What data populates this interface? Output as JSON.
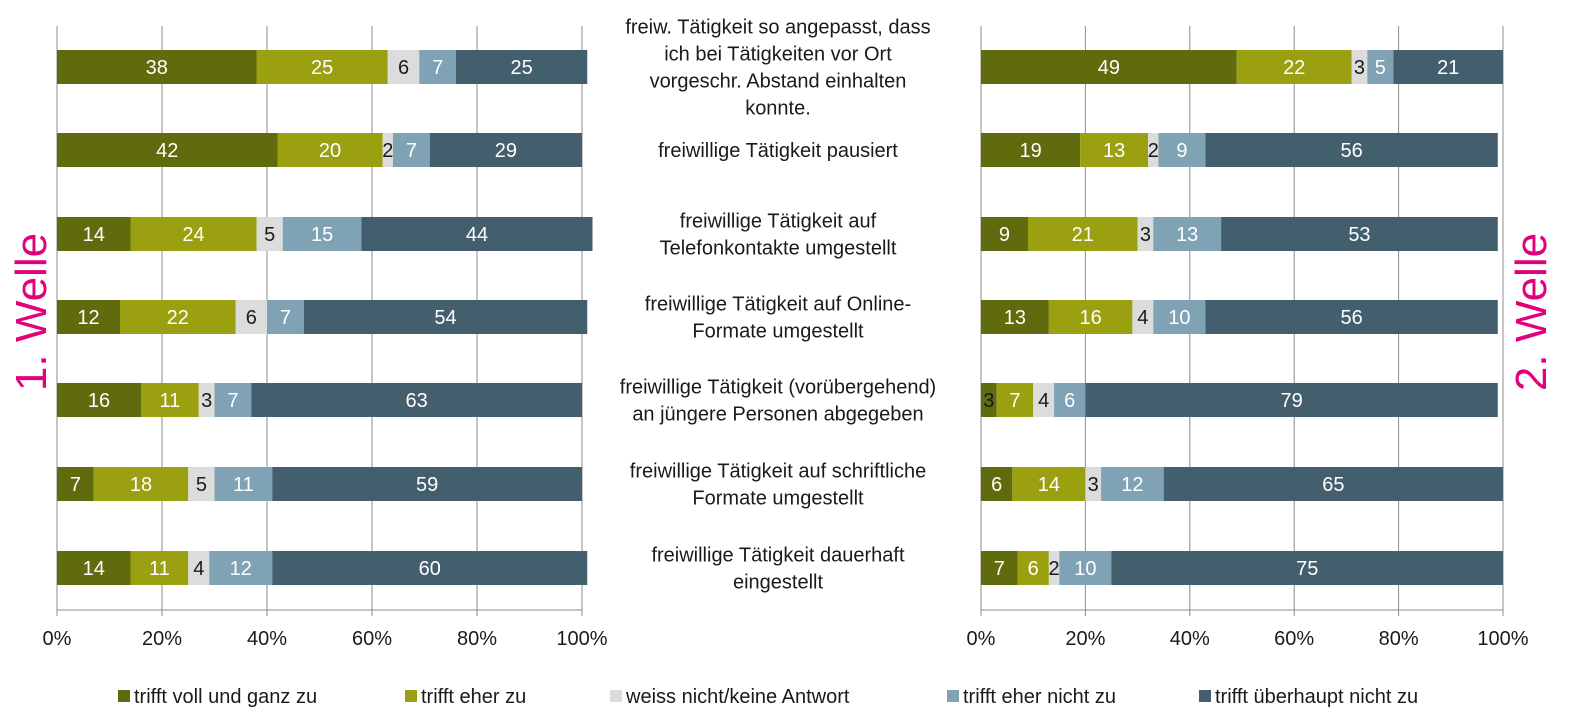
{
  "chart_data": [
    {
      "type": "bar",
      "orientation": "horizontal-stacked-100",
      "title": "1. Welle",
      "xlim": [
        0,
        100
      ],
      "xticks": [
        "0%",
        "20%",
        "40%",
        "60%",
        "80%",
        "100%"
      ],
      "categories": [
        "freiw. Tätigkeit so angepasst, dass ich bei Tätigkeiten vor Ort vorgeschr. Abstand einhalten konnte.",
        "freiwillige Tätigkeit pausiert",
        "freiwillige Tätigkeit auf Telefonkontakte umgestellt",
        "freiwillige Tätigkeit auf Online-Formate umgestellt",
        "freiwillige Tätigkeit (vorübergehend) an jüngere Personen abgegeben",
        "freiwillige Tätigkeit auf  schriftliche Formate umgestellt",
        "freiwillige Tätigkeit dauerhaft eingestellt"
      ],
      "series": [
        {
          "name": "trifft voll und ganz zu",
          "values": [
            38,
            42,
            14,
            12,
            16,
            7,
            14
          ]
        },
        {
          "name": "trifft eher zu",
          "values": [
            25,
            20,
            24,
            22,
            11,
            18,
            11
          ]
        },
        {
          "name": "weiss nicht/keine Antwort",
          "values": [
            6,
            2,
            5,
            6,
            3,
            5,
            4
          ]
        },
        {
          "name": "trifft eher nicht zu",
          "values": [
            7,
            7,
            15,
            7,
            7,
            11,
            12
          ]
        },
        {
          "name": "trifft überhaupt nicht zu",
          "values": [
            25,
            29,
            44,
            54,
            63,
            59,
            60
          ]
        }
      ]
    },
    {
      "type": "bar",
      "orientation": "horizontal-stacked-100",
      "title": "2. Welle",
      "xlim": [
        0,
        100
      ],
      "xticks": [
        "0%",
        "20%",
        "40%",
        "60%",
        "80%",
        "100%"
      ],
      "series": [
        {
          "name": "trifft voll und ganz zu",
          "values": [
            49,
            19,
            9,
            13,
            3,
            6,
            7
          ]
        },
        {
          "name": "trifft eher zu",
          "values": [
            22,
            13,
            21,
            16,
            7,
            14,
            6
          ]
        },
        {
          "name": "weiss nicht/keine Antwort",
          "values": [
            3,
            2,
            3,
            4,
            4,
            3,
            2
          ]
        },
        {
          "name": "trifft eher nicht zu",
          "values": [
            5,
            9,
            13,
            10,
            6,
            12,
            10
          ]
        },
        {
          "name": "trifft überhaupt nicht zu",
          "values": [
            21,
            56,
            53,
            56,
            79,
            65,
            75
          ]
        }
      ]
    }
  ],
  "category_lines": [
    [
      "freiw. Tätigkeit so angepasst, dass",
      "ich bei Tätigkeiten vor Ort",
      "vorgeschr. Abstand einhalten",
      "konnte."
    ],
    [
      "freiwillige Tätigkeit pausiert"
    ],
    [
      "freiwillige Tätigkeit auf",
      "Telefonkontakte umgestellt"
    ],
    [
      "freiwillige Tätigkeit auf Online-",
      "Formate umgestellt"
    ],
    [
      "freiwillige Tätigkeit (vorübergehend)",
      "an jüngere Personen abgegeben"
    ],
    [
      "freiwillige Tätigkeit auf  schriftliche",
      "Formate umgestellt"
    ],
    [
      "freiwillige Tätigkeit dauerhaft",
      "eingestellt"
    ]
  ],
  "colors": {
    "trifft voll und ganz zu": "#5f6b0c",
    "trifft eher zu": "#9aa00f",
    "weiss nicht/keine Antwort": "#dcdcdc",
    "trifft eher nicht zu": "#7fa3b5",
    "trifft überhaupt nicht zu": "#435e6c",
    "gridline": "#8c8c8c",
    "wave_label": "#e4007c",
    "label_on_dark": "#ffffff",
    "label_on_light": "#1a1a1a"
  }
}
